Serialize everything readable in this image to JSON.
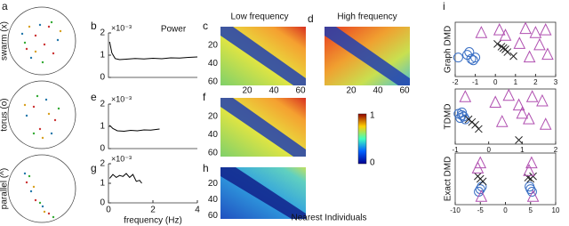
{
  "figure": {
    "panel_labels": [
      "a",
      "b",
      "c",
      "d",
      "e",
      "f",
      "g",
      "h",
      "i"
    ],
    "group_labels": [
      "swarm (x)",
      "torus (o)",
      "parallel (^)"
    ],
    "heat_titles": [
      "Low frequency",
      "High frequency"
    ],
    "heat_xlabel": "Nearest Individuals",
    "heat_yticks": [
      20,
      40,
      60
    ],
    "heat_xticks": [
      20,
      40,
      60
    ],
    "colorbar_ticks": [
      1,
      0
    ]
  },
  "chart_data": [
    {
      "type": "line",
      "title": "Power",
      "multiplier": "×10⁻³",
      "color": "#000000",
      "x": [
        0.05,
        0.15,
        0.3,
        0.5,
        0.8,
        1.2,
        1.6,
        2.0,
        2.4,
        2.8,
        3.2,
        3.6,
        4.0
      ],
      "values": [
        1.6,
        1.1,
        0.85,
        0.8,
        0.82,
        0.85,
        0.83,
        0.86,
        0.84,
        0.88,
        0.87,
        0.9,
        0.92
      ],
      "xlim": [
        0,
        4
      ],
      "ylim": [
        0,
        2
      ],
      "yticks": [
        0,
        1,
        2
      ]
    },
    {
      "type": "line",
      "multiplier": "×10⁻³",
      "color": "#000000",
      "x": [
        0.05,
        0.2,
        0.4,
        0.7,
        1.0,
        1.3,
        1.6,
        1.9,
        2.3
      ],
      "values": [
        1.05,
        0.9,
        0.8,
        0.78,
        0.82,
        0.8,
        0.84,
        0.83,
        0.88
      ],
      "xlim": [
        0,
        4
      ],
      "ylim": [
        0,
        2
      ],
      "yticks": [
        0,
        1,
        2
      ]
    },
    {
      "type": "line",
      "multiplier": "×10⁻³",
      "color": "#000000",
      "xlabel": "frequency (Hz)",
      "x": [
        0.05,
        0.2,
        0.35,
        0.5,
        0.65,
        0.8,
        0.95,
        1.1,
        1.25,
        1.4,
        1.5
      ],
      "values": [
        1.25,
        1.45,
        1.3,
        1.4,
        1.35,
        1.5,
        1.3,
        1.45,
        1.1,
        1.15,
        1.0
      ],
      "xlim": [
        0,
        4
      ],
      "ylim": [
        0,
        2
      ],
      "yticks": [
        0,
        1,
        2
      ],
      "xticks": [
        0,
        2,
        4
      ]
    },
    {
      "type": "scatter",
      "ylabel": "Graph DMD",
      "xlim": [
        -2,
        3
      ],
      "ylim": [
        -1,
        1
      ],
      "xticks": [
        -2,
        -1,
        0,
        1,
        2,
        3
      ],
      "series": [
        {
          "marker": "o",
          "color": "#3a6fc4",
          "x": [
            -1.4,
            -1.2,
            -1.1,
            -1.0,
            -1.3,
            -1.85
          ],
          "values": [
            -0.2,
            -0.35,
            -0.4,
            -0.3,
            -0.1,
            -0.3
          ]
        },
        {
          "marker": "x",
          "color": "#222222",
          "x": [
            0.1,
            0.3,
            0.5,
            0.6,
            0.9,
            0.4
          ],
          "values": [
            0.2,
            0.1,
            0.0,
            -0.1,
            -0.25,
            0.05
          ]
        },
        {
          "marker": "^",
          "color": "#b04fb0",
          "x": [
            -0.7,
            0.2,
            0.5,
            1.5,
            2.0,
            2.5,
            1.2,
            1.7,
            2.6,
            2.2
          ],
          "values": [
            0.6,
            0.7,
            0.5,
            0.75,
            0.6,
            0.7,
            0.2,
            -0.3,
            -0.2,
            0.15
          ]
        }
      ]
    },
    {
      "type": "scatter",
      "ylabel": "TDMD",
      "xlim": [
        -1,
        2
      ],
      "ylim": [
        -1,
        1
      ],
      "xticks": [
        -1,
        0,
        1,
        2
      ],
      "series": [
        {
          "marker": "o",
          "color": "#3a6fc4",
          "x": [
            -0.9,
            -0.8,
            -0.85,
            -0.75,
            -0.7,
            -0.8
          ],
          "values": [
            0.1,
            0.05,
            -0.05,
            0.0,
            -0.1,
            0.15
          ]
        },
        {
          "marker": "x",
          "color": "#222222",
          "x": [
            -0.5,
            -0.4,
            -0.3,
            -0.6,
            0.9
          ],
          "values": [
            -0.2,
            -0.3,
            -0.45,
            -0.1,
            -0.85
          ]
        },
        {
          "marker": "^",
          "color": "#b04fb0",
          "x": [
            -0.7,
            0.2,
            0.6,
            0.9,
            1.3,
            1.6,
            0.4,
            1.2,
            1.7,
            1.0
          ],
          "values": [
            0.7,
            0.5,
            0.75,
            0.4,
            0.7,
            0.55,
            -0.2,
            -0.1,
            -0.3,
            0.1
          ]
        }
      ]
    },
    {
      "type": "scatter",
      "ylabel": "Exact DMD",
      "xlim": [
        -10,
        10
      ],
      "ylim": [
        -1,
        1
      ],
      "xticks": [
        -10,
        -5,
        0,
        5,
        10
      ],
      "series": [
        {
          "marker": "o",
          "color": "#3a6fc4",
          "x": [
            -5,
            -5.3,
            -4.7,
            5,
            5.3,
            4.8
          ],
          "values": [
            -0.4,
            -0.5,
            -0.3,
            -0.4,
            -0.5,
            -0.3
          ]
        },
        {
          "marker": "x",
          "color": "#222222",
          "x": [
            -5,
            -5.5,
            -4.5,
            5,
            5.5,
            4.5
          ],
          "values": [
            0.0,
            0.1,
            -0.1,
            0.0,
            0.1,
            0.05
          ]
        },
        {
          "marker": "^",
          "color": "#b04fb0",
          "x": [
            -5,
            -5.5,
            5.2,
            4.7,
            -4.8,
            5.5
          ],
          "values": [
            0.6,
            0.4,
            0.6,
            0.3,
            -0.7,
            -0.7
          ]
        }
      ]
    }
  ]
}
